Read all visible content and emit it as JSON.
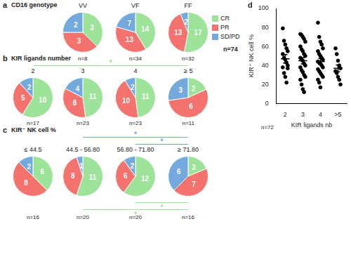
{
  "chart_data": [
    {
      "type": "pie",
      "panel": "a",
      "title": "CD16 genotype",
      "categories": [
        "CR",
        "PR",
        "SD/PD"
      ],
      "colors": [
        "#9ee39a",
        "#f4736f",
        "#74a9dd"
      ],
      "legend": "right",
      "data_labels": true,
      "annotation": "n=74",
      "series": [
        {
          "name": "VV",
          "values": [
            3,
            3,
            2
          ],
          "n_label": "n=8"
        },
        {
          "name": "VF",
          "values": [
            14,
            13,
            7
          ],
          "n_label": "n=34"
        },
        {
          "name": "FF",
          "values": [
            17,
            13,
            2
          ],
          "n_label": "n=32"
        }
      ]
    },
    {
      "type": "pie",
      "panel": "b",
      "title": "KIR ligands number",
      "categories": [
        "CR",
        "PR",
        "SD/PD"
      ],
      "colors": [
        "#9ee39a",
        "#f4736f",
        "#74a9dd"
      ],
      "data_labels": true,
      "series": [
        {
          "name": "2",
          "values": [
            10,
            5,
            2
          ],
          "n_label": "n=17"
        },
        {
          "name": "3",
          "values": [
            11,
            8,
            4
          ],
          "n_label": "n=23"
        },
        {
          "name": "4",
          "values": [
            11,
            10,
            2
          ],
          "n_label": "n=23"
        },
        {
          "name": "≥ 5",
          "values": [
            2,
            6,
            3
          ],
          "n_label": "n=11"
        }
      ],
      "significance": [
        {
          "from": "2",
          "to": "≥ 5",
          "color": "#9ee39a",
          "label": "*",
          "side": "above"
        }
      ]
    },
    {
      "type": "pie",
      "panel": "c",
      "title": "KIR⁻ NK cell %",
      "categories": [
        "CR",
        "PR",
        "SD/PD"
      ],
      "colors": [
        "#9ee39a",
        "#f4736f",
        "#74a9dd"
      ],
      "data_labels": true,
      "series": [
        {
          "name": "≤ 44.5",
          "values": [
            6,
            8,
            2
          ],
          "n_label": "n=16"
        },
        {
          "name": "44.5 - 56.80",
          "values": [
            11,
            8,
            1
          ],
          "n_label": "n=20"
        },
        {
          "name": "56.80 - 71.80",
          "values": [
            12,
            6,
            2
          ],
          "n_label": "n=20"
        },
        {
          "name": "≥ 71.80",
          "values": [
            3,
            7,
            6
          ],
          "n_label": "n=16"
        }
      ],
      "significance": [
        {
          "from": "44.5 - 56.80",
          "to": "≥ 71.80",
          "color": "#74a9dd",
          "label": "*",
          "side": "above"
        },
        {
          "from": "56.80 - 71.80",
          "to": "≥ 71.80",
          "color": "#74a9dd",
          "label": "*",
          "side": "above"
        },
        {
          "from": "56.80 - 71.80",
          "to": "≥ 71.80",
          "color": "#9ee39a",
          "label": "*",
          "side": "below"
        },
        {
          "from": "44.5 - 56.80",
          "to": "≥ 71.80",
          "color": "#9ee39a",
          "label": "*",
          "side": "below"
        }
      ]
    },
    {
      "type": "scatter",
      "panel": "d",
      "categories": [
        "2",
        "3",
        "4",
        ">5"
      ],
      "values": [
        [
          79,
          66,
          62,
          58,
          55,
          52,
          48,
          46,
          43,
          40,
          38,
          32,
          28,
          22,
          37
        ],
        [
          73,
          72,
          70,
          68,
          65,
          60,
          57,
          55,
          52,
          50,
          48,
          46,
          45,
          42,
          40,
          38,
          35,
          33,
          30,
          28,
          25,
          20,
          15,
          12
        ],
        [
          85,
          70,
          65,
          62,
          58,
          55,
          52,
          50,
          48,
          46,
          44,
          43,
          42,
          40,
          38,
          36,
          34,
          32,
          30,
          28,
          25,
          22,
          17
        ],
        [
          58,
          52,
          45,
          40,
          37,
          34,
          32,
          28,
          25,
          20
        ]
      ],
      "mean": [
        47,
        45,
        44,
        37
      ],
      "sem": [
        4.5,
        3.3,
        3.3,
        3.6
      ],
      "color": "#000000",
      "ylim": [
        0,
        100
      ],
      "yticks": [
        0,
        20,
        40,
        60,
        80,
        100
      ],
      "grid": false,
      "y_label": "KIR⁺ NK cell %",
      "x_label": "KIR ligands nb",
      "annotation": "n=72"
    }
  ]
}
